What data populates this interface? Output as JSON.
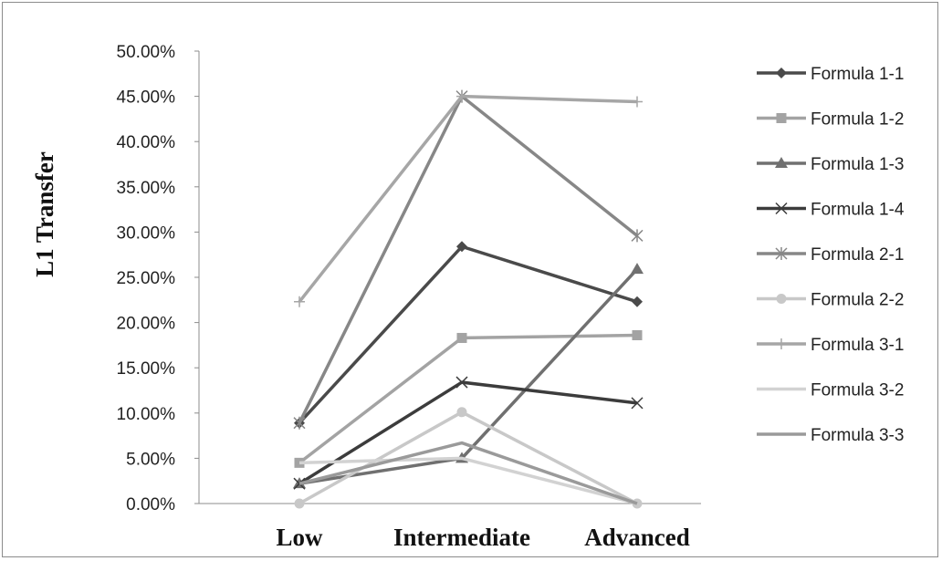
{
  "chart_data": {
    "type": "line",
    "title": "",
    "xlabel": "",
    "ylabel": "L1 Transfer",
    "categories": [
      "Low",
      "Intermediate",
      "Advanced"
    ],
    "ylim": [
      0,
      0.5
    ],
    "yticks": [
      "0.00%",
      "5.00%",
      "10.00%",
      "15.00%",
      "20.00%",
      "25.00%",
      "30.00%",
      "35.00%",
      "40.00%",
      "45.00%",
      "50.00%"
    ],
    "legend_position": "right",
    "grid": false,
    "series": [
      {
        "name": "Formula 1-1",
        "values": [
          0.089,
          0.284,
          0.223
        ],
        "color": "#4a4a4a",
        "marker": "diamond"
      },
      {
        "name": "Formula 1-2",
        "values": [
          0.045,
          0.183,
          0.186
        ],
        "color": "#a3a3a3",
        "marker": "square"
      },
      {
        "name": "Formula 1-3",
        "values": [
          0.022,
          0.05,
          0.259
        ],
        "color": "#707070",
        "marker": "triangle"
      },
      {
        "name": "Formula 1-4",
        "values": [
          0.022,
          0.134,
          0.111
        ],
        "color": "#3c3c3c",
        "marker": "x"
      },
      {
        "name": "Formula 2-1",
        "values": [
          0.089,
          0.45,
          0.296
        ],
        "color": "#878787",
        "marker": "star"
      },
      {
        "name": "Formula 2-2",
        "values": [
          0.0,
          0.101,
          0.0
        ],
        "color": "#c8c8c8",
        "marker": "circle"
      },
      {
        "name": "Formula 3-1",
        "values": [
          0.223,
          0.45,
          0.444
        ],
        "color": "#a6a6a6",
        "marker": "plus"
      },
      {
        "name": "Formula 3-2",
        "values": [
          0.045,
          0.05,
          0.0
        ],
        "color": "#d2d2d2",
        "marker": "none"
      },
      {
        "name": "Formula 3-3",
        "values": [
          0.022,
          0.067,
          0.0
        ],
        "color": "#9a9a9a",
        "marker": "none"
      }
    ]
  }
}
